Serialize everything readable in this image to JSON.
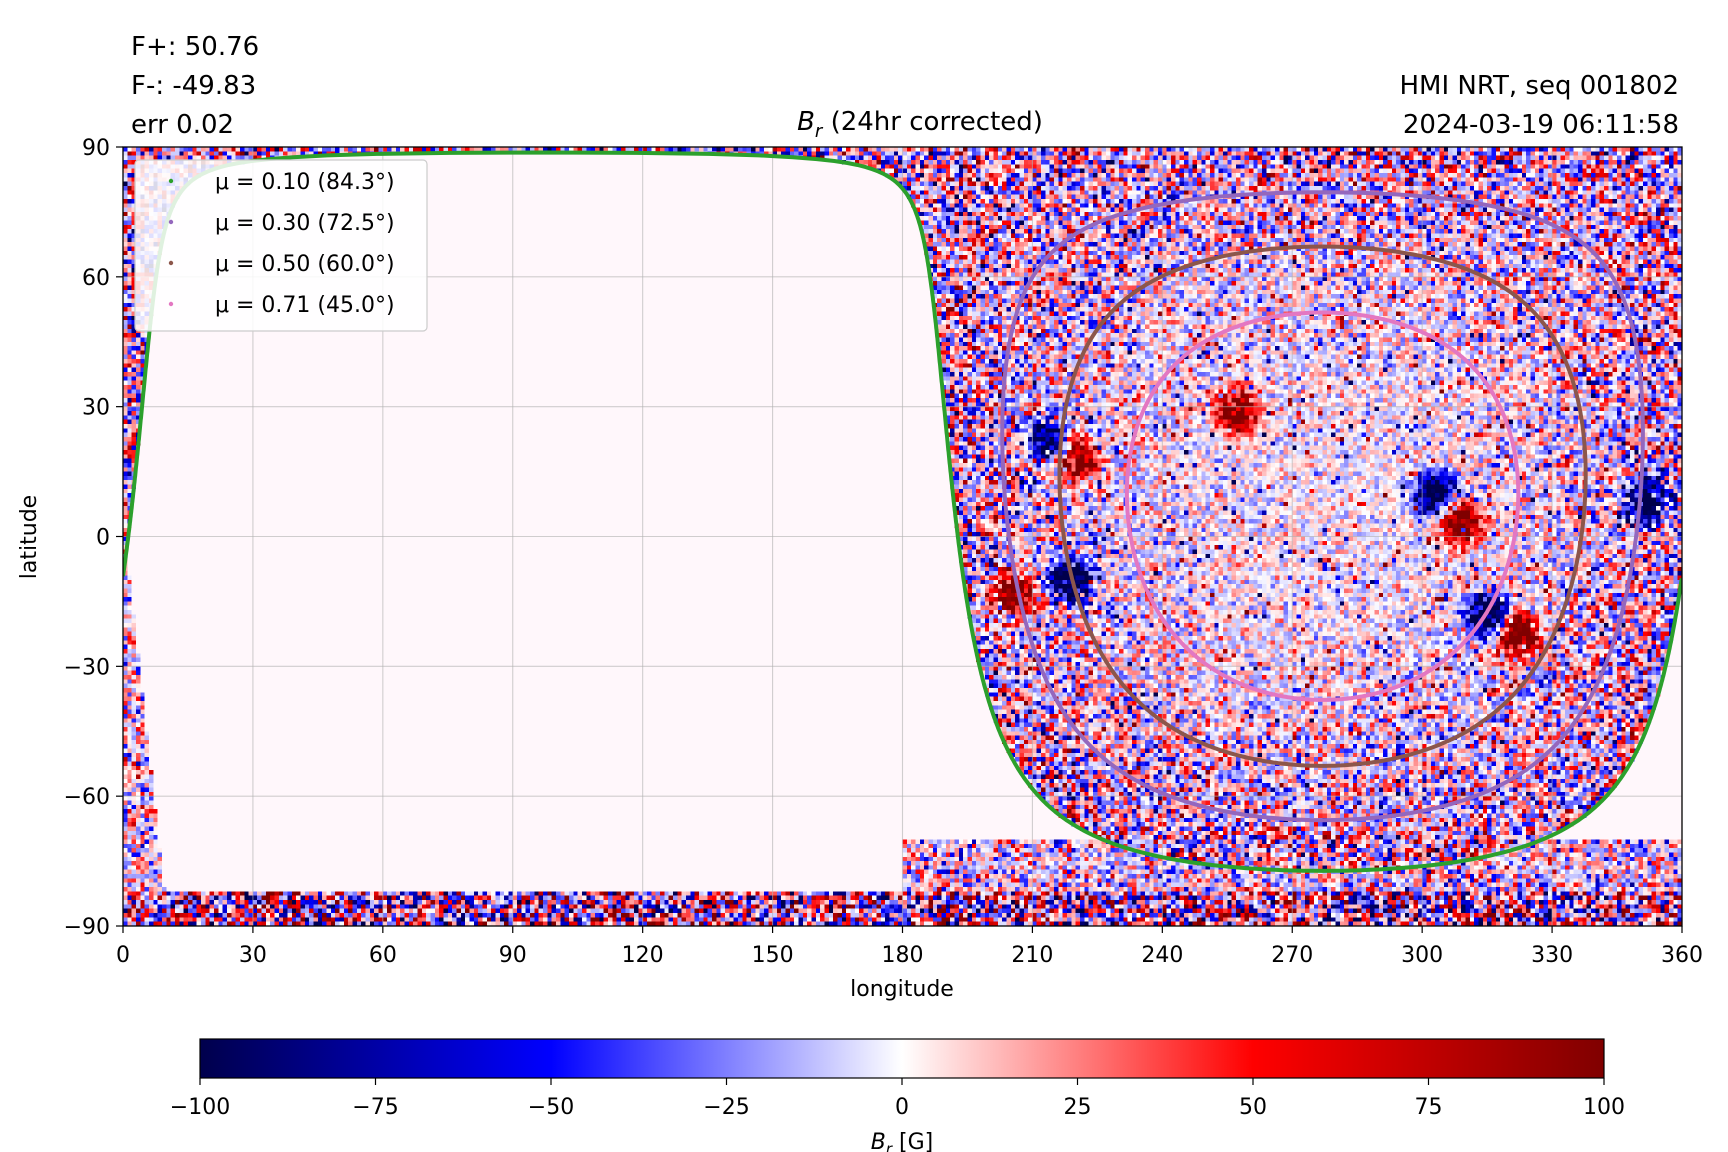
{
  "header": {
    "flux_pos": "F+: 50.76",
    "flux_neg": "F-: -49.83",
    "err": "err 0.02",
    "source": "HMI NRT, seq 001802",
    "timestamp": "2024-03-19 06:11:58"
  },
  "chart_data": [
    {
      "type": "heatmap",
      "title": "B_r (24hr corrected)",
      "title_parts": {
        "symbol": "B",
        "sub": "r",
        "rest": " (24hr corrected)"
      },
      "xlabel": "longitude",
      "ylabel": "latitude",
      "xlim": [
        0,
        360
      ],
      "ylim": [
        -90,
        90
      ],
      "xticks": [
        0,
        30,
        60,
        90,
        120,
        150,
        180,
        210,
        240,
        270,
        300,
        330,
        360
      ],
      "xtick_labels": [
        "0",
        "30",
        "60",
        "90",
        "120",
        "150",
        "180",
        "210",
        "240",
        "270",
        "300",
        "330",
        "360"
      ],
      "yticks": [
        90,
        60,
        30,
        0,
        -30,
        -60,
        -90
      ],
      "ytick_labels": [
        "90",
        "60",
        "30",
        "0",
        "−30",
        "−60",
        "−90"
      ],
      "grid": true,
      "colormap": "seismic",
      "visible_disk_center": {
        "lon": 277,
        "lat": -7
      },
      "visible_disk_b0_deg": 7,
      "regions": [
        {
          "lon": 220,
          "lat": 18,
          "pol": "+"
        },
        {
          "lon": 214,
          "lat": 22,
          "pol": "-"
        },
        {
          "lon": 206,
          "lat": -13,
          "pol": "+"
        },
        {
          "lon": 219,
          "lat": -10,
          "pol": "-"
        },
        {
          "lon": 315,
          "lat": -18,
          "pol": "-"
        },
        {
          "lon": 322,
          "lat": -23,
          "pol": "+"
        },
        {
          "lon": 303,
          "lat": 10,
          "pol": "-"
        },
        {
          "lon": 309,
          "lat": 3,
          "pol": "+"
        },
        {
          "lon": 257,
          "lat": 29,
          "pol": "+"
        },
        {
          "lon": 352,
          "lat": 8,
          "pol": "-"
        }
      ],
      "series": [
        {
          "name": "μ = 0.10 (84.3°)",
          "mu": 0.1,
          "angle_deg": 84.3,
          "color": "#2ca02c"
        },
        {
          "name": "μ = 0.30 (72.5°)",
          "mu": 0.3,
          "angle_deg": 72.5,
          "color": "#9467bd"
        },
        {
          "name": "μ = 0.50 (60.0°)",
          "mu": 0.5,
          "angle_deg": 60.0,
          "color": "#8c564b"
        },
        {
          "name": "μ = 0.71 (45.0°)",
          "mu": 0.71,
          "angle_deg": 45.0,
          "color": "#e377c2"
        }
      ],
      "legend_position": "upper left"
    },
    {
      "type": "colorbar",
      "label": "B_r [G]",
      "label_parts": {
        "symbol": "B",
        "sub": "r",
        "rest": " [G]"
      },
      "range": [
        -100,
        100
      ],
      "ticks": [
        -100,
        -75,
        -50,
        -25,
        0,
        25,
        50,
        75,
        100
      ],
      "tick_labels": [
        "−100",
        "−75",
        "−50",
        "−25",
        "0",
        "25",
        "50",
        "75",
        "100"
      ],
      "colormap": "seismic",
      "orientation": "horizontal"
    }
  ]
}
